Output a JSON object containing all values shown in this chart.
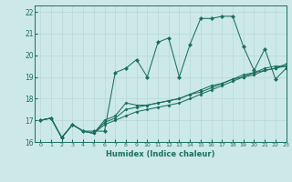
{
  "xlabel": "Humidex (Indice chaleur)",
  "ylabel": "",
  "xlim": [
    -0.5,
    23
  ],
  "ylim": [
    16,
    22.3
  ],
  "xticks": [
    0,
    1,
    2,
    3,
    4,
    5,
    6,
    7,
    8,
    9,
    10,
    11,
    12,
    13,
    14,
    15,
    16,
    17,
    18,
    19,
    20,
    21,
    22,
    23
  ],
  "yticks": [
    16,
    17,
    18,
    19,
    20,
    21,
    22
  ],
  "background_color": "#cde8e8",
  "grid_color": "#b8d8d8",
  "line_color": "#1a7060",
  "series": [
    [
      17.0,
      17.1,
      16.2,
      16.8,
      16.5,
      16.5,
      16.5,
      19.2,
      19.4,
      19.8,
      19.0,
      20.6,
      20.8,
      19.0,
      20.5,
      21.7,
      21.7,
      21.8,
      21.8,
      20.4,
      19.3,
      20.3,
      18.9,
      19.4
    ],
    [
      17.0,
      17.1,
      16.2,
      16.8,
      16.5,
      16.4,
      16.8,
      17.0,
      17.2,
      17.4,
      17.5,
      17.6,
      17.7,
      17.8,
      18.0,
      18.2,
      18.4,
      18.6,
      18.8,
      19.0,
      19.1,
      19.3,
      19.4,
      19.5
    ],
    [
      17.0,
      17.1,
      16.2,
      16.8,
      16.5,
      16.4,
      16.9,
      17.1,
      17.5,
      17.6,
      17.7,
      17.8,
      17.9,
      18.0,
      18.2,
      18.4,
      18.6,
      18.7,
      18.9,
      19.1,
      19.2,
      19.4,
      19.5,
      19.5
    ],
    [
      17.0,
      17.1,
      16.2,
      16.8,
      16.5,
      16.4,
      17.0,
      17.2,
      17.8,
      17.7,
      17.7,
      17.8,
      17.9,
      18.0,
      18.2,
      18.3,
      18.5,
      18.7,
      18.9,
      19.0,
      19.2,
      19.3,
      19.4,
      19.6
    ]
  ],
  "marker": "D",
  "markersize": 2.0,
  "linewidth": 0.75
}
